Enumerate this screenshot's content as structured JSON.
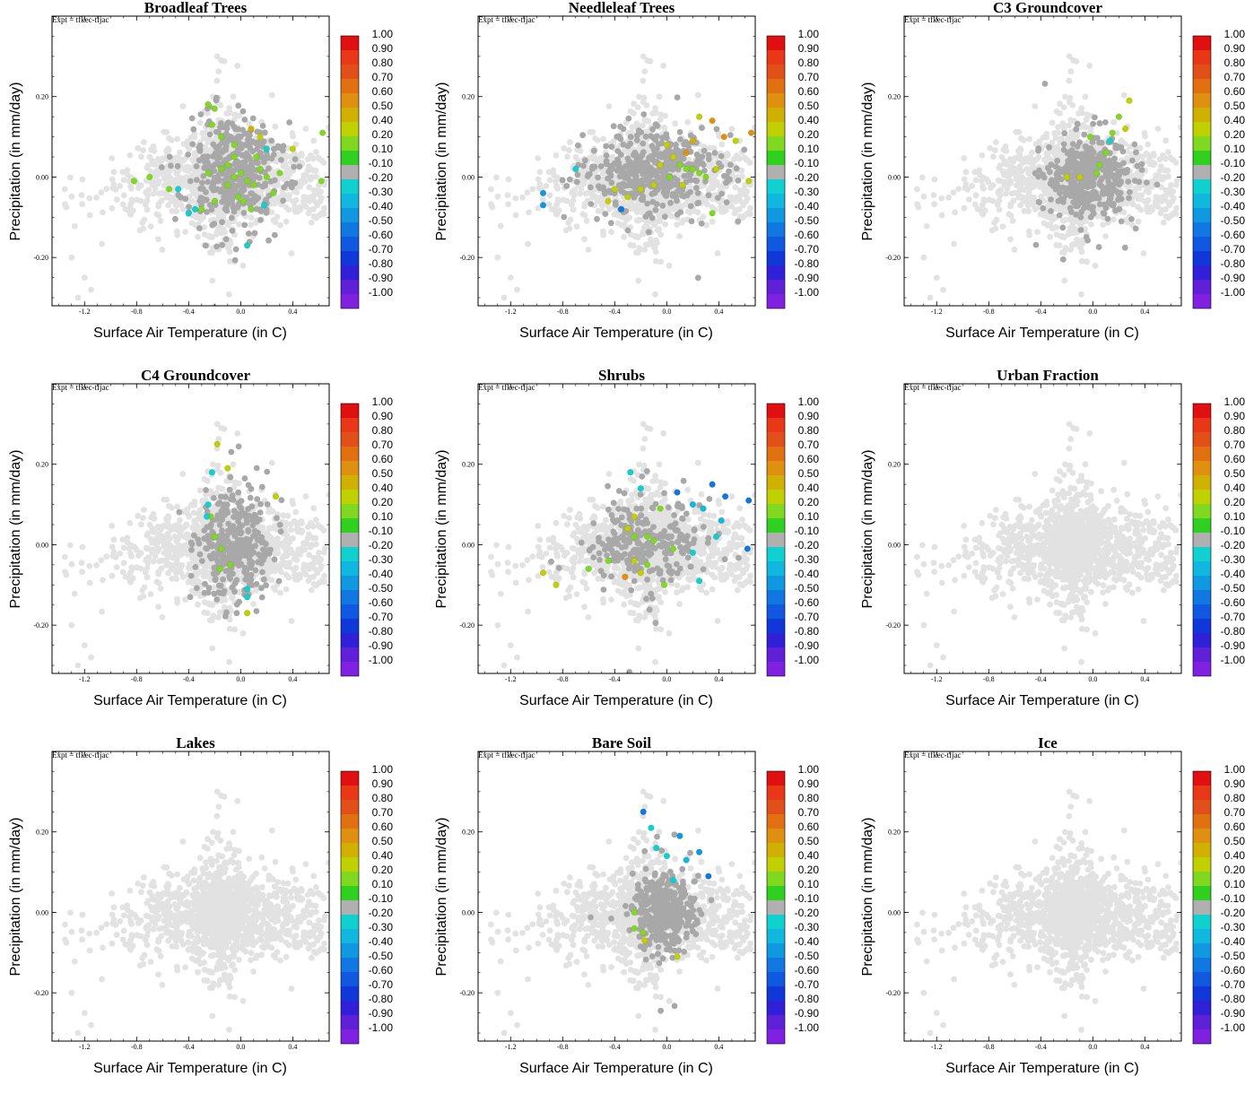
{
  "expt_label": "Expt = tfkec-tfjac",
  "xlabel": "Surface Air Temperature (in C)",
  "ylabel": "Precipitation (in mm/day)",
  "xticks": [
    "-1.2",
    "-0.8",
    "-0.4",
    "0.0",
    "0.4"
  ],
  "yticks": [
    "0.20",
    "0.00",
    "-0.20"
  ],
  "colorbar": {
    "labels": [
      "1.00",
      "0.90",
      "0.80",
      "0.70",
      "0.60",
      "0.50",
      "0.40",
      "0.20",
      "0.10",
      "-0.10",
      "-0.20",
      "-0.30",
      "-0.40",
      "-0.50",
      "-0.60",
      "-0.70",
      "-0.80",
      "-0.90",
      "-1.00"
    ],
    "colors": [
      "#e01010",
      "#e83818",
      "#e05018",
      "#e07010",
      "#e09010",
      "#d0b000",
      "#c0d000",
      "#80d820",
      "#30d020",
      "#b0b0b0",
      "#10d0d0",
      "#10b8e0",
      "#1098e0",
      "#1078e0",
      "#1058e0",
      "#1038d8",
      "#3020d8",
      "#6020d8",
      "#8020e0"
    ]
  },
  "chart_data": [
    {
      "type": "scatter",
      "title": "Broadleaf Trees",
      "xlabel": "Surface Air Temperature (in C)",
      "ylabel": "Precipitation (in mm/day)",
      "xlim": [
        -1.45,
        0.68
      ],
      "ylim": [
        -0.32,
        0.4
      ],
      "points": [
        {
          "x": -0.25,
          "y": 0.18,
          "value": 0.15
        },
        {
          "x": -0.2,
          "y": 0.17,
          "value": 0.15
        },
        {
          "x": -0.22,
          "y": 0.13,
          "value": 0.15
        },
        {
          "x": -0.15,
          "y": 0.1,
          "value": 0.15
        },
        {
          "x": -0.05,
          "y": 0.08,
          "value": 0.15
        },
        {
          "x": 0.08,
          "y": 0.12,
          "value": 0.5
        },
        {
          "x": 0.15,
          "y": 0.1,
          "value": 0.35
        },
        {
          "x": 0.4,
          "y": 0.07,
          "value": 0.35
        },
        {
          "x": 0.63,
          "y": 0.11,
          "value": 0.15
        },
        {
          "x": 0.62,
          "y": -0.01,
          "value": 0.15
        },
        {
          "x": -0.7,
          "y": 0.0,
          "value": 0.15
        },
        {
          "x": -0.82,
          "y": -0.01,
          "value": 0.15
        },
        {
          "x": -0.55,
          "y": -0.03,
          "value": 0.15
        },
        {
          "x": -0.48,
          "y": -0.03,
          "value": -0.25
        },
        {
          "x": -0.4,
          "y": -0.09,
          "value": -0.25
        },
        {
          "x": -0.35,
          "y": -0.08,
          "value": -0.25
        },
        {
          "x": -0.3,
          "y": -0.08,
          "value": 0.15
        },
        {
          "x": -0.2,
          "y": -0.06,
          "value": 0.15
        },
        {
          "x": -0.25,
          "y": 0.01,
          "value": 0.15
        },
        {
          "x": -0.15,
          "y": 0.02,
          "value": 0.15
        },
        {
          "x": -0.1,
          "y": 0.03,
          "value": 0.15
        },
        {
          "x": -0.05,
          "y": 0.0,
          "value": 0.15
        },
        {
          "x": 0.0,
          "y": 0.01,
          "value": 0.15
        },
        {
          "x": 0.05,
          "y": -0.01,
          "value": 0.15
        },
        {
          "x": 0.1,
          "y": -0.02,
          "value": 0.15
        },
        {
          "x": 0.15,
          "y": 0.02,
          "value": 0.15
        },
        {
          "x": 0.2,
          "y": 0.0,
          "value": 0.15
        },
        {
          "x": 0.25,
          "y": -0.04,
          "value": 0.15
        },
        {
          "x": 0.3,
          "y": 0.01,
          "value": 0.15
        },
        {
          "x": -0.02,
          "y": -0.05,
          "value": 0.15
        },
        {
          "x": 0.02,
          "y": -0.06,
          "value": 0.15
        },
        {
          "x": 0.08,
          "y": -0.08,
          "value": 0.15
        },
        {
          "x": -0.1,
          "y": -0.02,
          "value": 0.15
        },
        {
          "x": 0.12,
          "y": 0.05,
          "value": 0.15
        },
        {
          "x": 0.2,
          "y": 0.07,
          "value": -0.25
        },
        {
          "x": 0.18,
          "y": -0.07,
          "value": -0.25
        },
        {
          "x": 0.05,
          "y": -0.17,
          "value": -0.25
        },
        {
          "x": -0.05,
          "y": 0.05,
          "value": 0.15
        }
      ]
    },
    {
      "type": "scatter",
      "title": "Needleleaf Trees",
      "xlabel": "Surface Air Temperature (in C)",
      "ylabel": "Precipitation (in mm/day)",
      "xlim": [
        -1.45,
        0.68
      ],
      "ylim": [
        -0.32,
        0.4
      ],
      "points": [
        {
          "x": 0.25,
          "y": 0.15,
          "value": 0.35
        },
        {
          "x": 0.35,
          "y": 0.14,
          "value": 0.6
        },
        {
          "x": 0.44,
          "y": 0.1,
          "value": 0.6
        },
        {
          "x": 0.53,
          "y": 0.09,
          "value": 0.35
        },
        {
          "x": 0.65,
          "y": 0.11,
          "value": 0.6
        },
        {
          "x": 0.63,
          "y": -0.01,
          "value": 0.35
        },
        {
          "x": 0.2,
          "y": 0.09,
          "value": 0.5
        },
        {
          "x": 0.15,
          "y": 0.06,
          "value": 0.6
        },
        {
          "x": 0.0,
          "y": 0.08,
          "value": 0.35
        },
        {
          "x": 0.05,
          "y": 0.05,
          "value": 0.35
        },
        {
          "x": 0.1,
          "y": 0.03,
          "value": 0.15
        },
        {
          "x": 0.15,
          "y": 0.02,
          "value": 0.15
        },
        {
          "x": 0.2,
          "y": 0.02,
          "value": 0.15
        },
        {
          "x": 0.25,
          "y": 0.01,
          "value": 0.15
        },
        {
          "x": 0.3,
          "y": 0.0,
          "value": 0.15
        },
        {
          "x": 0.38,
          "y": 0.02,
          "value": 0.35
        },
        {
          "x": 0.35,
          "y": -0.09,
          "value": 0.15
        },
        {
          "x": -0.1,
          "y": -0.02,
          "value": 0.35
        },
        {
          "x": -0.2,
          "y": -0.03,
          "value": 0.35
        },
        {
          "x": -0.3,
          "y": -0.05,
          "value": 0.35
        },
        {
          "x": -0.4,
          "y": -0.03,
          "value": 0.35
        },
        {
          "x": -0.45,
          "y": -0.06,
          "value": 0.35
        },
        {
          "x": -0.7,
          "y": 0.02,
          "value": -0.25
        },
        {
          "x": -0.95,
          "y": -0.04,
          "value": -0.45
        },
        {
          "x": -0.95,
          "y": -0.07,
          "value": -0.45
        },
        {
          "x": -0.35,
          "y": -0.08,
          "value": -0.55
        },
        {
          "x": 0.02,
          "y": 0.0,
          "value": 0.15
        },
        {
          "x": -0.05,
          "y": 0.03,
          "value": 0.35
        },
        {
          "x": 0.12,
          "y": -0.02,
          "value": 0.35
        }
      ]
    },
    {
      "type": "scatter",
      "title": "C3 Groundcover",
      "xlabel": "Surface Air Temperature (in C)",
      "ylabel": "Precipitation (in mm/day)",
      "xlim": [
        -1.45,
        0.68
      ],
      "ylim": [
        -0.32,
        0.4
      ],
      "points": [
        {
          "x": 0.28,
          "y": 0.19,
          "value": 0.35
        },
        {
          "x": 0.25,
          "y": 0.12,
          "value": 0.35
        },
        {
          "x": 0.2,
          "y": 0.15,
          "value": 0.15
        },
        {
          "x": 0.15,
          "y": 0.11,
          "value": 0.15
        },
        {
          "x": 0.13,
          "y": 0.09,
          "value": -0.25
        },
        {
          "x": 0.1,
          "y": 0.06,
          "value": 0.15
        },
        {
          "x": -0.02,
          "y": 0.1,
          "value": 0.15
        },
        {
          "x": 0.05,
          "y": 0.03,
          "value": 0.15
        },
        {
          "x": 0.03,
          "y": 0.01,
          "value": 0.15
        },
        {
          "x": -0.1,
          "y": 0.0,
          "value": 0.35
        },
        {
          "x": -0.2,
          "y": 0.0,
          "value": 0.35
        }
      ]
    },
    {
      "type": "scatter",
      "title": "C4 Groundcover",
      "xlabel": "Surface Air Temperature (in C)",
      "ylabel": "Precipitation (in mm/day)",
      "xlim": [
        -1.45,
        0.68
      ],
      "ylim": [
        -0.32,
        0.4
      ],
      "points": [
        {
          "x": -0.18,
          "y": 0.25,
          "value": 0.35
        },
        {
          "x": -0.1,
          "y": 0.19,
          "value": 0.35
        },
        {
          "x": 0.27,
          "y": 0.12,
          "value": 0.35
        },
        {
          "x": -0.22,
          "y": 0.18,
          "value": -0.25
        },
        {
          "x": -0.25,
          "y": 0.1,
          "value": -0.25
        },
        {
          "x": -0.23,
          "y": 0.07,
          "value": 0.15
        },
        {
          "x": -0.26,
          "y": 0.07,
          "value": -0.25
        },
        {
          "x": -0.2,
          "y": 0.02,
          "value": 0.15
        },
        {
          "x": -0.15,
          "y": -0.01,
          "value": 0.15
        },
        {
          "x": -0.08,
          "y": -0.05,
          "value": 0.15
        },
        {
          "x": -0.16,
          "y": -0.06,
          "value": 0.15
        },
        {
          "x": 0.05,
          "y": -0.11,
          "value": -0.25
        },
        {
          "x": 0.05,
          "y": -0.13,
          "value": -0.25
        },
        {
          "x": 0.05,
          "y": -0.17,
          "value": 0.35
        }
      ]
    },
    {
      "type": "scatter",
      "title": "Shrubs",
      "xlabel": "Surface Air Temperature (in C)",
      "ylabel": "Precipitation (in mm/day)",
      "xlim": [
        -1.45,
        0.68
      ],
      "ylim": [
        -0.32,
        0.4
      ],
      "points": [
        {
          "x": -0.28,
          "y": 0.18,
          "value": -0.25
        },
        {
          "x": -0.2,
          "y": 0.14,
          "value": -0.25
        },
        {
          "x": 0.08,
          "y": 0.13,
          "value": -0.55
        },
        {
          "x": 0.35,
          "y": 0.15,
          "value": -0.55
        },
        {
          "x": 0.45,
          "y": 0.12,
          "value": -0.55
        },
        {
          "x": 0.63,
          "y": 0.11,
          "value": -0.55
        },
        {
          "x": 0.2,
          "y": 0.1,
          "value": -0.35
        },
        {
          "x": 0.28,
          "y": 0.09,
          "value": -0.35
        },
        {
          "x": 0.42,
          "y": 0.06,
          "value": -0.35
        },
        {
          "x": 0.38,
          "y": 0.02,
          "value": -0.25
        },
        {
          "x": 0.62,
          "y": -0.01,
          "value": -0.55
        },
        {
          "x": 0.25,
          "y": -0.09,
          "value": -0.25
        },
        {
          "x": -0.25,
          "y": 0.07,
          "value": 0.35
        },
        {
          "x": -0.3,
          "y": 0.04,
          "value": 0.35
        },
        {
          "x": -0.25,
          "y": 0.02,
          "value": 0.15
        },
        {
          "x": -0.15,
          "y": 0.02,
          "value": 0.15
        },
        {
          "x": -0.05,
          "y": 0.09,
          "value": 0.15
        },
        {
          "x": -0.1,
          "y": 0.01,
          "value": 0.15
        },
        {
          "x": -0.95,
          "y": -0.07,
          "value": 0.35
        },
        {
          "x": -0.85,
          "y": -0.1,
          "value": 0.35
        },
        {
          "x": -0.6,
          "y": -0.06,
          "value": 0.15
        },
        {
          "x": -0.45,
          "y": -0.04,
          "value": 0.15
        },
        {
          "x": -0.32,
          "y": -0.08,
          "value": 0.6
        },
        {
          "x": -0.25,
          "y": -0.04,
          "value": 0.35
        },
        {
          "x": -0.2,
          "y": -0.07,
          "value": 0.35
        },
        {
          "x": -0.15,
          "y": -0.05,
          "value": 0.15
        },
        {
          "x": -0.02,
          "y": -0.1,
          "value": 0.15
        },
        {
          "x": 0.05,
          "y": -0.01,
          "value": 0.15
        },
        {
          "x": 0.2,
          "y": -0.02,
          "value": -0.25
        }
      ]
    },
    {
      "type": "scatter",
      "title": "Urban Fraction",
      "xlabel": "Surface Air Temperature (in C)",
      "ylabel": "Precipitation (in mm/day)",
      "xlim": [
        -1.45,
        0.68
      ],
      "ylim": [
        -0.32,
        0.4
      ],
      "points": []
    },
    {
      "type": "scatter",
      "title": "Lakes",
      "xlabel": "Surface Air Temperature (in C)",
      "ylabel": "Precipitation (in mm/day)",
      "xlim": [
        -1.45,
        0.68
      ],
      "ylim": [
        -0.32,
        0.4
      ],
      "points": []
    },
    {
      "type": "scatter",
      "title": "Bare Soil",
      "xlabel": "Surface Air Temperature (in C)",
      "ylabel": "Precipitation (in mm/day)",
      "xlim": [
        -1.45,
        0.68
      ],
      "ylim": [
        -0.32,
        0.4
      ],
      "points": [
        {
          "x": -0.18,
          "y": 0.25,
          "value": -0.55
        },
        {
          "x": -0.12,
          "y": 0.21,
          "value": -0.25
        },
        {
          "x": 0.1,
          "y": 0.19,
          "value": -0.45
        },
        {
          "x": -0.08,
          "y": 0.16,
          "value": -0.25
        },
        {
          "x": 0.0,
          "y": 0.14,
          "value": -0.25
        },
        {
          "x": 0.15,
          "y": 0.13,
          "value": -0.35
        },
        {
          "x": 0.25,
          "y": 0.15,
          "value": -0.45
        },
        {
          "x": 0.32,
          "y": 0.09,
          "value": -0.55
        },
        {
          "x": 0.05,
          "y": 0.08,
          "value": -0.25
        },
        {
          "x": -0.25,
          "y": 0.0,
          "value": 0.15
        },
        {
          "x": -0.25,
          "y": -0.04,
          "value": 0.15
        },
        {
          "x": -0.18,
          "y": -0.05,
          "value": 0.15
        },
        {
          "x": -0.17,
          "y": -0.07,
          "value": 0.35
        },
        {
          "x": 0.08,
          "y": -0.11,
          "value": 0.35
        }
      ]
    },
    {
      "type": "scatter",
      "title": "Ice",
      "xlabel": "Surface Air Temperature (in C)",
      "ylabel": "Precipitation (in mm/day)",
      "xlim": [
        -1.45,
        0.68
      ],
      "ylim": [
        -0.32,
        0.4
      ],
      "points": []
    }
  ]
}
